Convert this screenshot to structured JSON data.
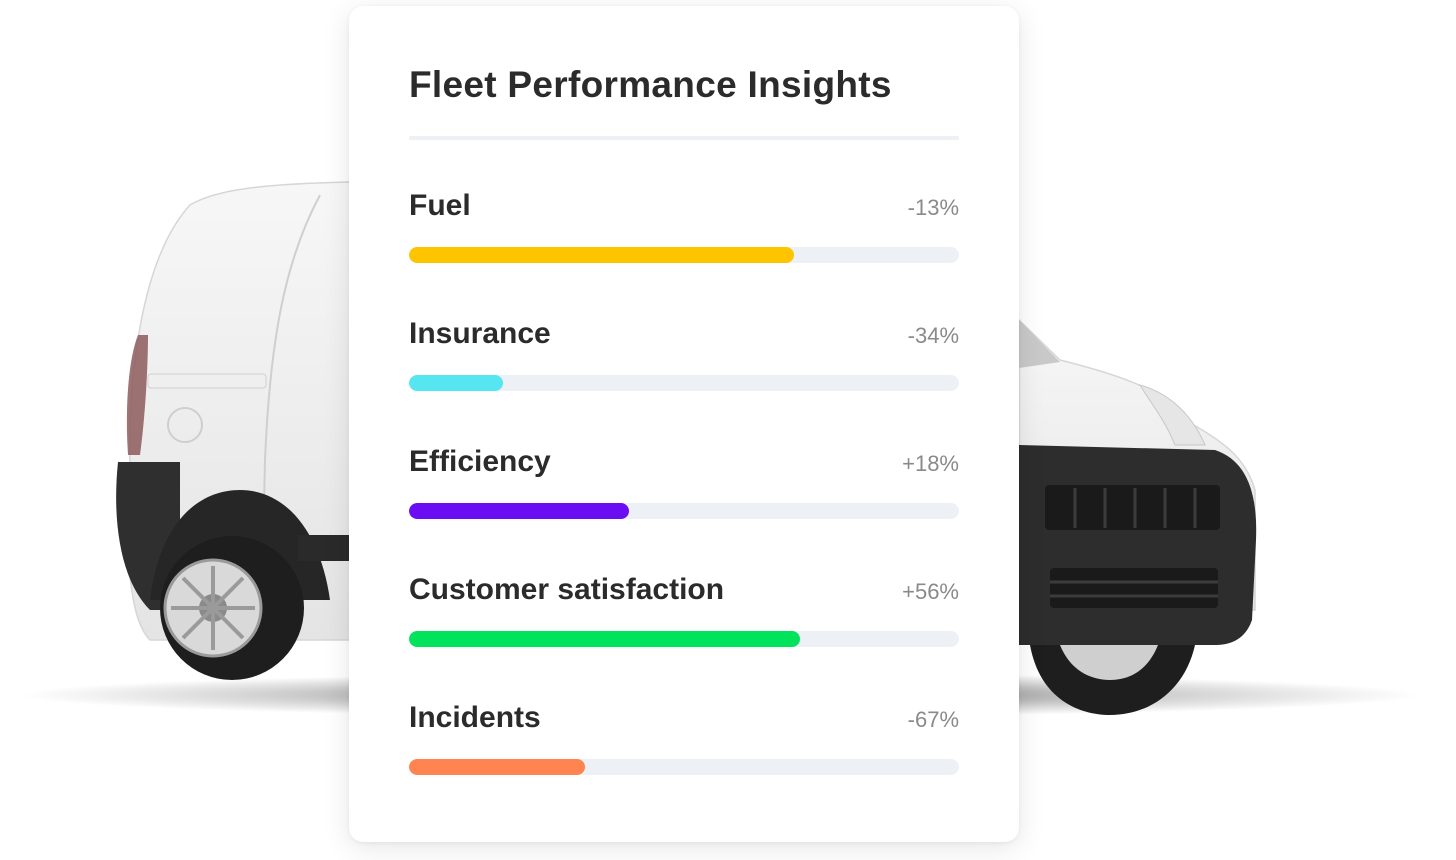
{
  "card": {
    "title": "Fleet Performance Insights"
  },
  "metrics": [
    {
      "label": "Fuel",
      "change": "-13%",
      "fill": 0.7,
      "color": "#ffc400"
    },
    {
      "label": "Insurance",
      "change": "-34%",
      "fill": 0.17,
      "color": "#56e6f2"
    },
    {
      "label": "Efficiency",
      "change": "+18%",
      "fill": 0.4,
      "color": "#6a0df2"
    },
    {
      "label": "Customer satisfaction",
      "change": "+56%",
      "fill": 0.71,
      "color": "#00e35a"
    },
    {
      "label": "Incidents",
      "change": "-67%",
      "fill": 0.32,
      "color": "#ff8450"
    }
  ]
}
